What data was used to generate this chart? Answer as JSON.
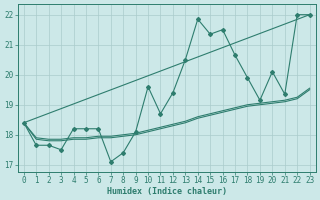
{
  "xlabel": "Humidex (Indice chaleur)",
  "background_color": "#cce8e8",
  "grid_color": "#aacccc",
  "line_color": "#2e7d6e",
  "xlim": [
    -0.5,
    23.5
  ],
  "ylim": [
    16.75,
    22.35
  ],
  "yticks": [
    17,
    18,
    19,
    20,
    21,
    22
  ],
  "xticks": [
    0,
    1,
    2,
    3,
    4,
    5,
    6,
    7,
    8,
    9,
    10,
    11,
    12,
    13,
    14,
    15,
    16,
    17,
    18,
    19,
    20,
    21,
    22,
    23
  ],
  "line1_x": [
    0,
    1,
    2,
    3,
    4,
    5,
    6,
    7,
    8,
    9,
    10,
    11,
    12,
    13,
    14,
    15,
    16,
    17,
    18,
    19,
    20,
    21,
    22,
    23
  ],
  "line1_y": [
    18.4,
    17.65,
    17.65,
    17.5,
    18.2,
    18.2,
    18.2,
    17.1,
    17.4,
    18.1,
    19.6,
    18.7,
    19.4,
    20.5,
    21.85,
    21.35,
    21.5,
    20.65,
    19.9,
    19.15,
    20.1,
    19.35,
    22.0,
    22.0
  ],
  "line2_x": [
    0,
    23
  ],
  "line2_y": [
    18.4,
    22.0
  ],
  "line3_x": [
    0,
    1,
    2,
    3,
    4,
    5,
    6,
    7,
    8,
    9,
    10,
    11,
    12,
    13,
    14,
    15,
    16,
    17,
    18,
    19,
    20,
    21,
    22,
    23
  ],
  "line3_y": [
    18.4,
    17.85,
    17.8,
    17.8,
    17.85,
    17.85,
    17.9,
    17.9,
    17.95,
    18.0,
    18.1,
    18.2,
    18.3,
    18.4,
    18.55,
    18.65,
    18.75,
    18.85,
    18.95,
    19.0,
    19.05,
    19.1,
    19.2,
    19.5
  ],
  "line4_x": [
    0,
    1,
    2,
    3,
    4,
    5,
    6,
    7,
    8,
    9,
    10,
    11,
    12,
    13,
    14,
    15,
    16,
    17,
    18,
    19,
    20,
    21,
    22,
    23
  ],
  "line4_y": [
    18.4,
    17.9,
    17.85,
    17.85,
    17.9,
    17.9,
    17.95,
    17.95,
    18.0,
    18.05,
    18.15,
    18.25,
    18.35,
    18.45,
    18.6,
    18.7,
    18.8,
    18.9,
    19.0,
    19.05,
    19.1,
    19.15,
    19.25,
    19.55
  ]
}
